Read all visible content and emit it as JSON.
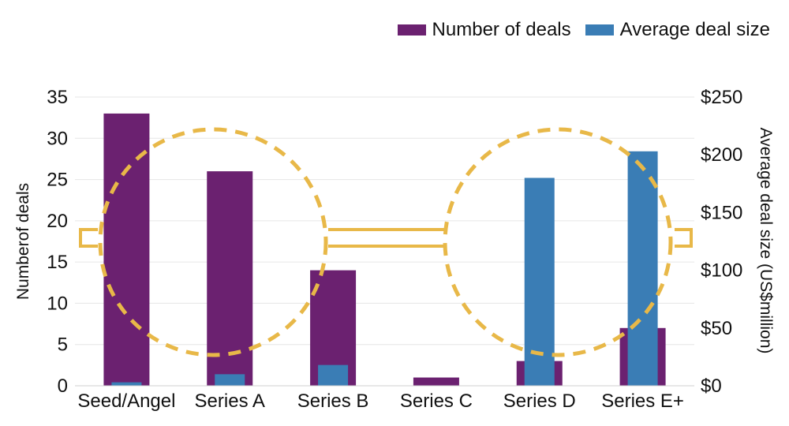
{
  "chart_data": {
    "type": "bar",
    "categories": [
      "Seed/Angel",
      "Series A",
      "Series B",
      "Series C",
      "Series D",
      "Series E+"
    ],
    "series": [
      {
        "name": "Number of deals",
        "axis": "left",
        "color": "#6b2170",
        "values": [
          33,
          26,
          14,
          1,
          3,
          7
        ]
      },
      {
        "name": "Average deal size",
        "axis": "right",
        "color": "#3a7db5",
        "values": [
          3,
          10,
          18,
          0,
          180,
          203
        ]
      }
    ],
    "ylabel": "Numberof deals",
    "ylabel_right": "Average deal size (US$million)",
    "ylim": [
      0,
      35
    ],
    "ylim_right": [
      0,
      250
    ],
    "yticks": [
      0,
      5,
      10,
      15,
      20,
      25,
      30,
      35
    ],
    "yticks_right": [
      "$0",
      "$50",
      "$100",
      "$150",
      "$200",
      "$250"
    ],
    "legend_position": "top-right",
    "grid": true,
    "annotation_color": "#e8b848"
  }
}
